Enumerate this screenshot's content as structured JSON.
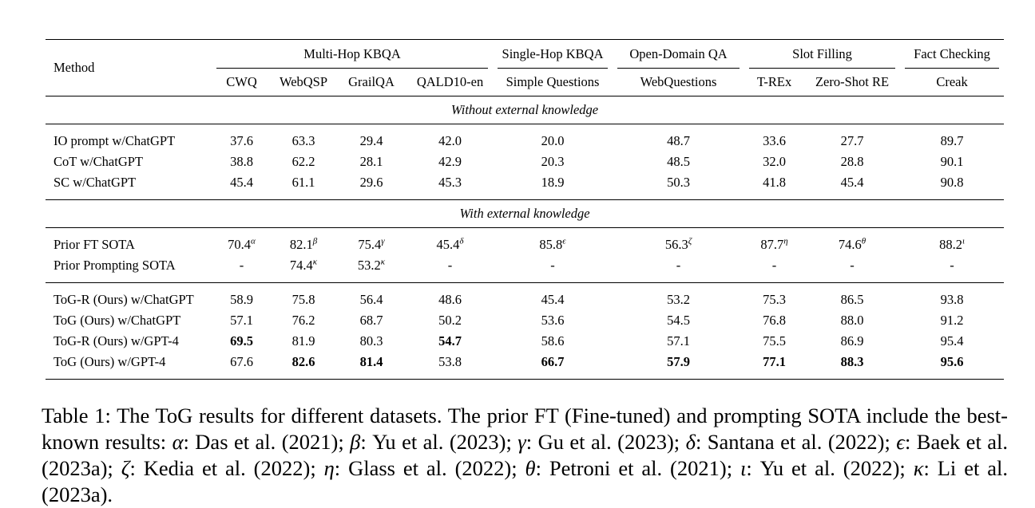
{
  "table": {
    "method_header": "Method",
    "groups": [
      {
        "label": "Multi-Hop KBQA",
        "span": 4
      },
      {
        "label": "Single-Hop KBQA",
        "span": 1
      },
      {
        "label": "Open-Domain QA",
        "span": 1
      },
      {
        "label": "Slot Filling",
        "span": 2
      },
      {
        "label": "Fact Checking",
        "span": 1
      }
    ],
    "datasets": [
      "CWQ",
      "WebQSP",
      "GrailQA",
      "QALD10-en",
      "Simple Questions",
      "WebQuestions",
      "T-REx",
      "Zero-Shot RE",
      "Creak"
    ],
    "sections": [
      {
        "title": "Without external knowledge",
        "blocks": [
          [
            {
              "method": "IO prompt w/ChatGPT",
              "cells": [
                {
                  "v": "37.6"
                },
                {
                  "v": "63.3"
                },
                {
                  "v": "29.4"
                },
                {
                  "v": "42.0"
                },
                {
                  "v": "20.0"
                },
                {
                  "v": "48.7"
                },
                {
                  "v": "33.6"
                },
                {
                  "v": "27.7"
                },
                {
                  "v": "89.7"
                }
              ]
            },
            {
              "method": "CoT w/ChatGPT",
              "cells": [
                {
                  "v": "38.8"
                },
                {
                  "v": "62.2"
                },
                {
                  "v": "28.1"
                },
                {
                  "v": "42.9"
                },
                {
                  "v": "20.3"
                },
                {
                  "v": "48.5"
                },
                {
                  "v": "32.0"
                },
                {
                  "v": "28.8"
                },
                {
                  "v": "90.1"
                }
              ]
            },
            {
              "method": "SC w/ChatGPT",
              "cells": [
                {
                  "v": "45.4"
                },
                {
                  "v": "61.1"
                },
                {
                  "v": "29.6"
                },
                {
                  "v": "45.3"
                },
                {
                  "v": "18.9"
                },
                {
                  "v": "50.3"
                },
                {
                  "v": "41.8"
                },
                {
                  "v": "45.4"
                },
                {
                  "v": "90.8"
                }
              ]
            }
          ]
        ]
      },
      {
        "title": "With external knowledge",
        "blocks": [
          [
            {
              "method": "Prior FT SOTA",
              "cells": [
                {
                  "v": "70.4",
                  "sup": "α"
                },
                {
                  "v": "82.1",
                  "sup": "β"
                },
                {
                  "v": "75.4",
                  "sup": "γ"
                },
                {
                  "v": "45.4",
                  "sup": "δ"
                },
                {
                  "v": "85.8",
                  "sup": "ϵ"
                },
                {
                  "v": "56.3",
                  "sup": "ζ"
                },
                {
                  "v": "87.7",
                  "sup": "η"
                },
                {
                  "v": "74.6",
                  "sup": "θ"
                },
                {
                  "v": "88.2",
                  "sup": "ι"
                }
              ]
            },
            {
              "method": "Prior Prompting SOTA",
              "cells": [
                {
                  "v": "-"
                },
                {
                  "v": "74.4",
                  "sup": "κ"
                },
                {
                  "v": "53.2",
                  "sup": "κ"
                },
                {
                  "v": "-"
                },
                {
                  "v": "-"
                },
                {
                  "v": "-"
                },
                {
                  "v": "-"
                },
                {
                  "v": "-"
                },
                {
                  "v": "-"
                }
              ]
            }
          ],
          [
            {
              "method": "ToG-R (Ours) w/ChatGPT",
              "cells": [
                {
                  "v": "58.9"
                },
                {
                  "v": "75.8"
                },
                {
                  "v": "56.4"
                },
                {
                  "v": "48.6"
                },
                {
                  "v": "45.4"
                },
                {
                  "v": "53.2"
                },
                {
                  "v": "75.3"
                },
                {
                  "v": "86.5"
                },
                {
                  "v": "93.8"
                }
              ]
            },
            {
              "method": "ToG (Ours) w/ChatGPT",
              "cells": [
                {
                  "v": "57.1"
                },
                {
                  "v": "76.2"
                },
                {
                  "v": "68.7"
                },
                {
                  "v": "50.2"
                },
                {
                  "v": "53.6"
                },
                {
                  "v": "54.5"
                },
                {
                  "v": "76.8"
                },
                {
                  "v": "88.0"
                },
                {
                  "v": "91.2"
                }
              ]
            },
            {
              "method": "ToG-R (Ours) w/GPT-4",
              "cells": [
                {
                  "v": "69.5",
                  "b": true
                },
                {
                  "v": "81.9"
                },
                {
                  "v": "80.3"
                },
                {
                  "v": "54.7",
                  "b": true
                },
                {
                  "v": "58.6"
                },
                {
                  "v": "57.1"
                },
                {
                  "v": "75.5"
                },
                {
                  "v": "86.9"
                },
                {
                  "v": "95.4"
                }
              ]
            },
            {
              "method": "ToG (Ours) w/GPT-4",
              "cells": [
                {
                  "v": "67.6"
                },
                {
                  "v": "82.6",
                  "b": true
                },
                {
                  "v": "81.4",
                  "b": true
                },
                {
                  "v": "53.8"
                },
                {
                  "v": "66.7",
                  "b": true
                },
                {
                  "v": "57.9",
                  "b": true
                },
                {
                  "v": "77.1",
                  "b": true
                },
                {
                  "v": "88.3",
                  "b": true
                },
                {
                  "v": "95.6",
                  "b": true
                }
              ]
            }
          ]
        ]
      }
    ]
  },
  "caption": {
    "label": "Table 1:",
    "intro": "The ToG results for different datasets. The prior FT (Fine-tuned) and prompting SOTA include the best-known results:",
    "refs": [
      {
        "sym": "α",
        "text": "Das et al. (2021)"
      },
      {
        "sym": "β",
        "text": "Yu et al. (2023)"
      },
      {
        "sym": "γ",
        "text": "Gu et al. (2023)"
      },
      {
        "sym": "δ",
        "text": "Santana et al. (2022)"
      },
      {
        "sym": "ϵ",
        "text": "Baek et al. (2023a)"
      },
      {
        "sym": "ζ",
        "text": "Kedia et al. (2022)"
      },
      {
        "sym": "η",
        "text": "Glass et al. (2022)"
      },
      {
        "sym": "θ",
        "text": "Petroni et al. (2021)"
      },
      {
        "sym": "ι",
        "text": "Yu et al. (2022)"
      },
      {
        "sym": "κ",
        "text": "Li et al. (2023a)"
      }
    ]
  }
}
